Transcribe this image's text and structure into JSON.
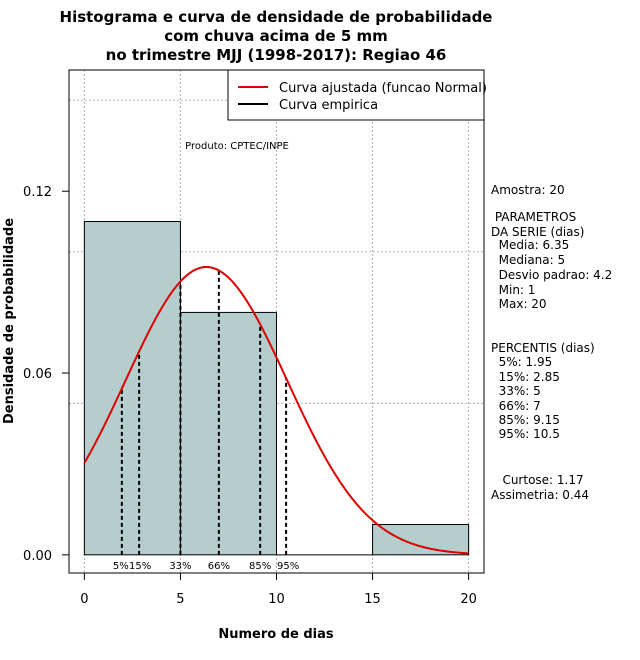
{
  "chart_data": {
    "type": "bar",
    "title_lines": [
      "Histograma e curva de densidade de probabilidade",
      "com chuva acima de 5 mm",
      "no trimestre MJJ (1998-2017): Regiao 46"
    ],
    "xlabel": "Numero de dias",
    "ylabel": "Densidade de probabilidade",
    "xlim": [
      -0.8,
      20.8
    ],
    "ylim": [
      -0.006,
      0.16
    ],
    "x_ticks": [
      0,
      5,
      10,
      15,
      20
    ],
    "y_ticks": [
      0.0,
      0.06,
      0.12
    ],
    "y_tick_labels": [
      "0.00",
      "0.06",
      "0.12"
    ],
    "grid": true,
    "bins": [
      {
        "start": 0,
        "end": 5,
        "density": 0.11
      },
      {
        "start": 5,
        "end": 10,
        "density": 0.08
      },
      {
        "start": 10,
        "end": 15,
        "density": 0.0
      },
      {
        "start": 15,
        "end": 20,
        "density": 0.01
      }
    ],
    "bar_color": "#b5cdcd",
    "normal_curve": {
      "mean": 6.35,
      "sd": 4.2,
      "color": "#dd0000"
    },
    "percentiles": [
      {
        "label": "5%",
        "value": 1.95
      },
      {
        "label": "15%",
        "value": 2.85
      },
      {
        "label": "33%",
        "value": 5
      },
      {
        "label": "66%",
        "value": 7
      },
      {
        "label": "85%",
        "value": 9.15
      },
      {
        "label": "95%",
        "value": 10.5
      }
    ],
    "legend": {
      "placement": "top-right",
      "entries": [
        {
          "label": "Curva ajustada (funcao Normal)",
          "color": "#dd0000"
        },
        {
          "label": "Curva empirica",
          "color": "#000000"
        }
      ]
    },
    "credit": "Produto: CPTEC/INPE"
  },
  "side_panel": {
    "lines": [
      "Amostra: 20",
      " PARAMETROS",
      "DA SERIE (dias)",
      "  Media: 6.35",
      "  Mediana: 5",
      "  Desvio padrao: 4.2",
      "  Min: 1",
      "  Max: 20",
      "PERCENTIS (dias)",
      "  5%: 1.95",
      "  15%: 2.85",
      "  33%: 5",
      "  66%: 7",
      "  85%: 9.15",
      "  95%: 10.5",
      "   Curtose: 1.17",
      "Assimetria: 0.44"
    ]
  }
}
